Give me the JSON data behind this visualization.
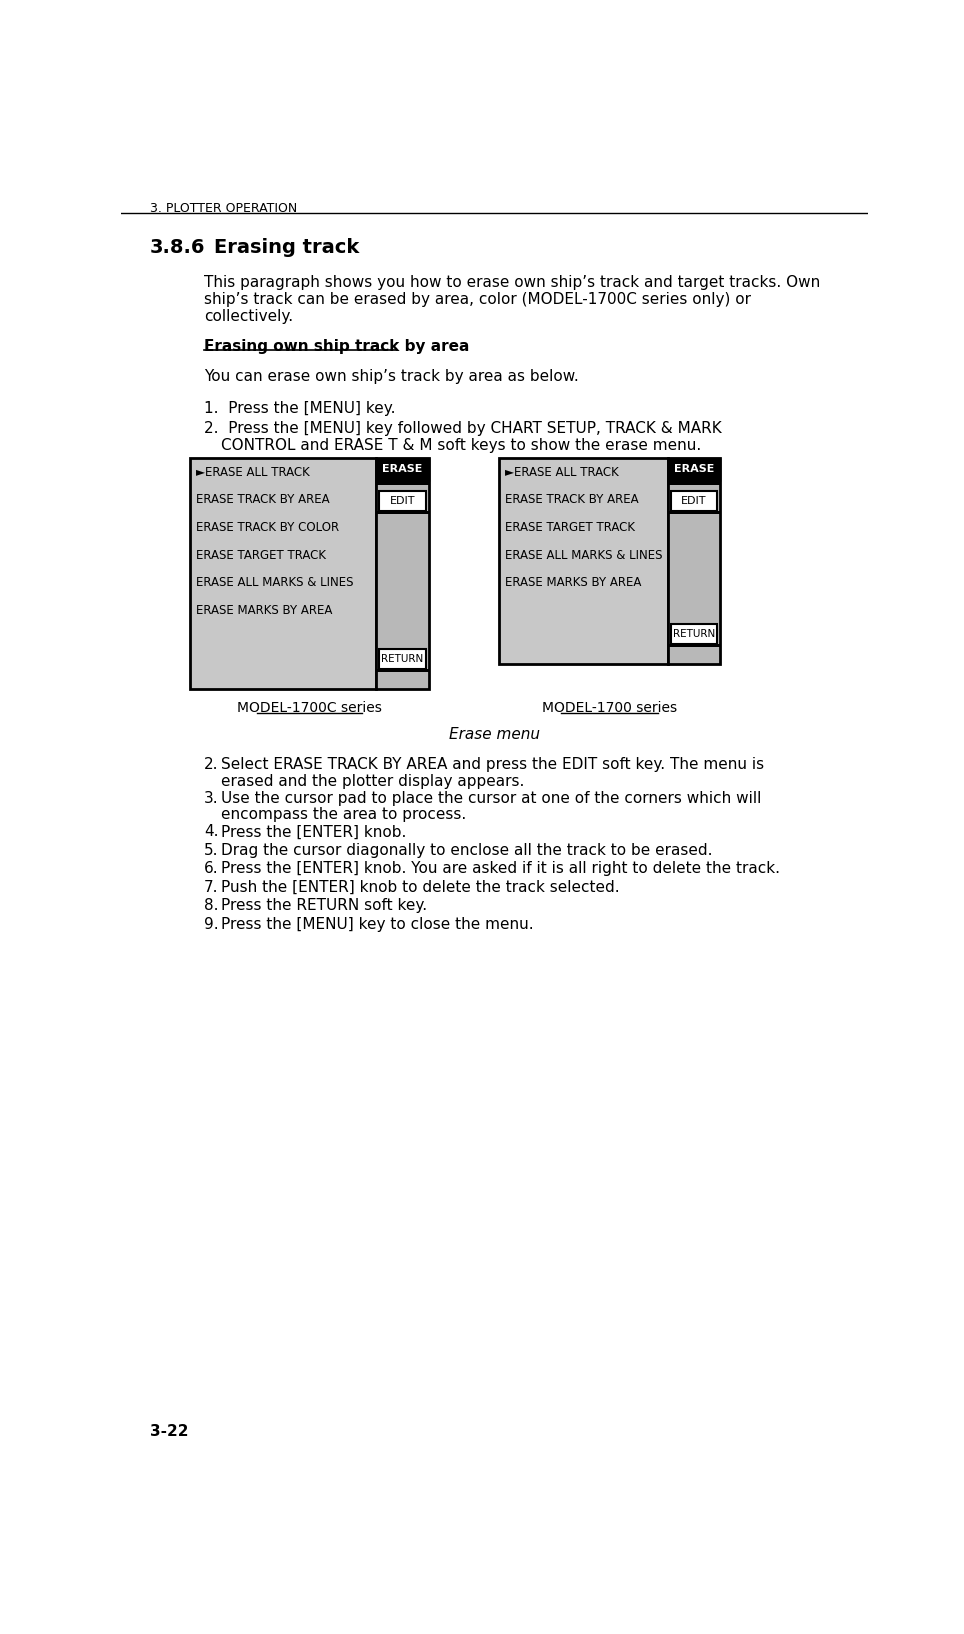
{
  "page_header": "3. PLOTTER OPERATION",
  "page_number": "3-22",
  "section": "3.8.6",
  "section_title": "Erasing track",
  "intro_lines": [
    "This paragraph shows you how to erase own ship’s track and target tracks. Own",
    "ship’s track can be erased by area, color (MODEL-1700C series only) or",
    "collectively."
  ],
  "subheading": "Erasing own ship track by area",
  "sub_text": "You can erase own ship’s track by area as below.",
  "left_menu_label": "MODEL-1700C series",
  "right_menu_label": "MODEL-1700 series",
  "left_menu_items": [
    "►ERASE ALL TRACK",
    "ERASE TRACK BY AREA",
    "ERASE TRACK BY COLOR",
    "ERASE TARGET TRACK",
    "ERASE ALL MARKS & LINES",
    "ERASE MARKS BY AREA"
  ],
  "right_menu_items": [
    "►ERASE ALL TRACK",
    "ERASE TRACK BY AREA",
    "ERASE TARGET TRACK",
    "ERASE ALL MARKS & LINES",
    "ERASE MARKS BY AREA"
  ],
  "figure_caption": "Erase menu",
  "steps_after": [
    [
      "Select ERASE TRACK BY AREA and press the EDIT soft key. The menu is",
      "erased and the plotter display appears."
    ],
    [
      "Use the cursor pad to place the cursor at one of the corners which will",
      "encompass the area to process."
    ],
    [
      "Press the [ENTER] knob."
    ],
    [
      "Drag the cursor diagonally to enclose all the track to be erased."
    ],
    [
      "Press the [ENTER] knob. You are asked if it is all right to delete the track."
    ],
    [
      "Push the [ENTER] knob to delete the track selected."
    ],
    [
      "Press the RETURN soft key."
    ],
    [
      "Press the [MENU] key to close the menu."
    ]
  ],
  "bg_color": "#ffffff",
  "text_color": "#000000",
  "menu_bg": "#c8c8c8",
  "menu_border": "#000000",
  "btn_sidebar_bg": "#b8b8b8",
  "btn_erase_bg": "#000000",
  "btn_erase_fg": "#ffffff",
  "btn_other_bg": "#ffffff",
  "btn_other_fg": "#000000"
}
